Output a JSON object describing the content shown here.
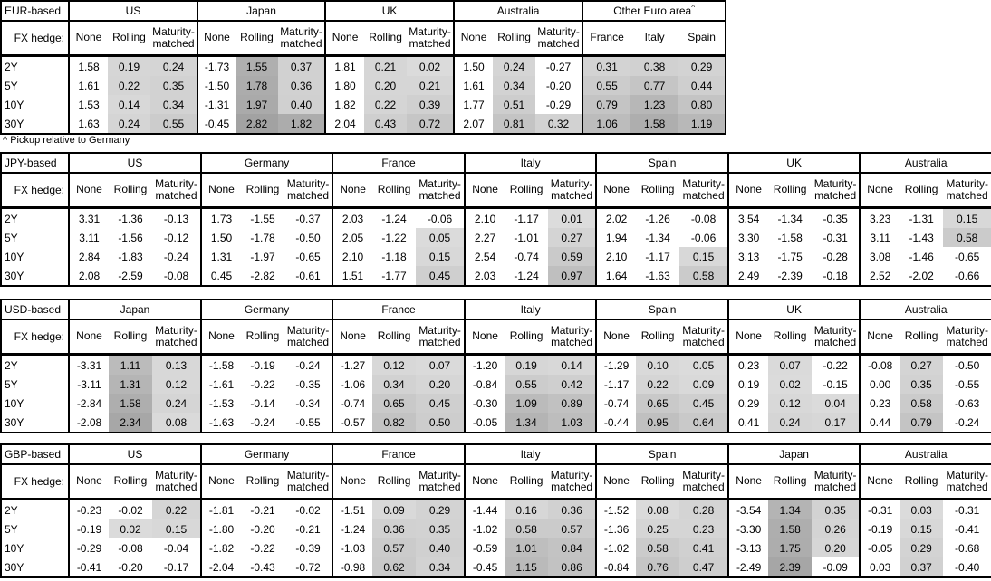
{
  "page": {
    "background": "#ffffff",
    "border_color": "#000000"
  },
  "heatmap": {
    "zero_or_negative": "#ffffff",
    "low": "#dcdcdc",
    "high": "#a2a2a2"
  },
  "tables": [
    {
      "base_label": "EUR-based",
      "fx_label": "FX hedge:",
      "row_labels": [
        "2Y",
        "5Y",
        "10Y",
        "30Y"
      ],
      "col_headers": [
        "None",
        "Rolling",
        "Maturity-matched"
      ],
      "footnote": "^ Pickup relative to Germany",
      "groups": [
        {
          "country": "US",
          "rows": [
            [
              "1.58",
              "0.19",
              "0.24"
            ],
            [
              "1.61",
              "0.22",
              "0.35"
            ],
            [
              "1.53",
              "0.14",
              "0.34"
            ],
            [
              "1.63",
              "0.24",
              "0.55"
            ]
          ]
        },
        {
          "country": "Japan",
          "rows": [
            [
              "-1.73",
              "1.55",
              "0.37"
            ],
            [
              "-1.50",
              "1.78",
              "0.36"
            ],
            [
              "-1.31",
              "1.97",
              "0.40"
            ],
            [
              "-0.45",
              "2.82",
              "1.82"
            ]
          ]
        },
        {
          "country": "UK",
          "rows": [
            [
              "1.81",
              "0.21",
              "0.02"
            ],
            [
              "1.80",
              "0.20",
              "0.21"
            ],
            [
              "1.82",
              "0.22",
              "0.39"
            ],
            [
              "2.04",
              "0.43",
              "0.72"
            ]
          ]
        },
        {
          "country": "Australia",
          "rows": [
            [
              "1.50",
              "0.24",
              "-0.27"
            ],
            [
              "1.61",
              "0.34",
              "-0.20"
            ],
            [
              "1.77",
              "0.51",
              "-0.29"
            ],
            [
              "2.07",
              "0.81",
              "0.32"
            ]
          ]
        },
        {
          "country": "Other Euro area",
          "sup": "^",
          "sub_headers": [
            "France",
            "Italy",
            "Spain"
          ],
          "rows": [
            [
              "0.31",
              "0.38",
              "0.29"
            ],
            [
              "0.55",
              "0.77",
              "0.44"
            ],
            [
              "0.79",
              "1.23",
              "0.80"
            ],
            [
              "1.06",
              "1.58",
              "1.19"
            ]
          ]
        }
      ]
    },
    {
      "base_label": "JPY-based",
      "fx_label": "FX hedge:",
      "row_labels": [
        "2Y",
        "5Y",
        "10Y",
        "30Y"
      ],
      "col_headers": [
        "None",
        "Rolling",
        "Maturity-matched"
      ],
      "groups": [
        {
          "country": "US",
          "rows": [
            [
              "3.31",
              "-1.36",
              "-0.13"
            ],
            [
              "3.11",
              "-1.56",
              "-0.12"
            ],
            [
              "2.84",
              "-1.83",
              "-0.24"
            ],
            [
              "2.08",
              "-2.59",
              "-0.08"
            ]
          ]
        },
        {
          "country": "Germany",
          "rows": [
            [
              "1.73",
              "-1.55",
              "-0.37"
            ],
            [
              "1.50",
              "-1.78",
              "-0.50"
            ],
            [
              "1.31",
              "-1.97",
              "-0.65"
            ],
            [
              "0.45",
              "-2.82",
              "-0.61"
            ]
          ]
        },
        {
          "country": "France",
          "rows": [
            [
              "2.03",
              "-1.24",
              "-0.06"
            ],
            [
              "2.05",
              "-1.22",
              "0.05"
            ],
            [
              "2.10",
              "-1.18",
              "0.15"
            ],
            [
              "1.51",
              "-1.77",
              "0.45"
            ]
          ]
        },
        {
          "country": "Italy",
          "rows": [
            [
              "2.10",
              "-1.17",
              "0.01"
            ],
            [
              "2.27",
              "-1.01",
              "0.27"
            ],
            [
              "2.54",
              "-0.74",
              "0.59"
            ],
            [
              "2.03",
              "-1.24",
              "0.97"
            ]
          ]
        },
        {
          "country": "Spain",
          "rows": [
            [
              "2.02",
              "-1.26",
              "-0.08"
            ],
            [
              "1.94",
              "-1.34",
              "-0.06"
            ],
            [
              "2.10",
              "-1.17",
              "0.15"
            ],
            [
              "1.64",
              "-1.63",
              "0.58"
            ]
          ]
        },
        {
          "country": "UK",
          "rows": [
            [
              "3.54",
              "-1.34",
              "-0.35"
            ],
            [
              "3.30",
              "-1.58",
              "-0.31"
            ],
            [
              "3.13",
              "-1.75",
              "-0.28"
            ],
            [
              "2.49",
              "-2.39",
              "-0.18"
            ]
          ]
        },
        {
          "country": "Australia",
          "rows": [
            [
              "3.23",
              "-1.31",
              "0.15"
            ],
            [
              "3.11",
              "-1.43",
              "0.58"
            ],
            [
              "3.08",
              "-1.46",
              "-0.65"
            ],
            [
              "2.52",
              "-2.02",
              "-0.66"
            ]
          ]
        }
      ]
    },
    {
      "base_label": "USD-based",
      "fx_label": "FX hedge:",
      "row_labels": [
        "2Y",
        "5Y",
        "10Y",
        "30Y"
      ],
      "col_headers": [
        "None",
        "Rolling",
        "Maturity-matched"
      ],
      "groups": [
        {
          "country": "Japan",
          "rows": [
            [
              "-3.31",
              "1.11",
              "0.13"
            ],
            [
              "-3.11",
              "1.31",
              "0.12"
            ],
            [
              "-2.84",
              "1.58",
              "0.24"
            ],
            [
              "-2.08",
              "2.34",
              "0.08"
            ]
          ]
        },
        {
          "country": "Germany",
          "rows": [
            [
              "-1.58",
              "-0.19",
              "-0.24"
            ],
            [
              "-1.61",
              "-0.22",
              "-0.35"
            ],
            [
              "-1.53",
              "-0.14",
              "-0.34"
            ],
            [
              "-1.63",
              "-0.24",
              "-0.55"
            ]
          ]
        },
        {
          "country": "France",
          "rows": [
            [
              "-1.27",
              "0.12",
              "0.07"
            ],
            [
              "-1.06",
              "0.34",
              "0.20"
            ],
            [
              "-0.74",
              "0.65",
              "0.45"
            ],
            [
              "-0.57",
              "0.82",
              "0.50"
            ]
          ]
        },
        {
          "country": "Italy",
          "rows": [
            [
              "-1.20",
              "0.19",
              "0.14"
            ],
            [
              "-0.84",
              "0.55",
              "0.42"
            ],
            [
              "-0.30",
              "1.09",
              "0.89"
            ],
            [
              "-0.05",
              "1.34",
              "1.03"
            ]
          ]
        },
        {
          "country": "Spain",
          "rows": [
            [
              "-1.29",
              "0.10",
              "0.05"
            ],
            [
              "-1.17",
              "0.22",
              "0.09"
            ],
            [
              "-0.74",
              "0.65",
              "0.45"
            ],
            [
              "-0.44",
              "0.95",
              "0.64"
            ]
          ]
        },
        {
          "country": "UK",
          "rows": [
            [
              "0.23",
              "0.07",
              "-0.22"
            ],
            [
              "0.19",
              "0.02",
              "-0.15"
            ],
            [
              "0.29",
              "0.12",
              "0.04"
            ],
            [
              "0.41",
              "0.24",
              "0.17"
            ]
          ]
        },
        {
          "country": "Australia",
          "rows": [
            [
              "-0.08",
              "0.27",
              "-0.50"
            ],
            [
              "0.00",
              "0.35",
              "-0.55"
            ],
            [
              "0.23",
              "0.58",
              "-0.63"
            ],
            [
              "0.44",
              "0.79",
              "-0.24"
            ]
          ]
        }
      ]
    },
    {
      "base_label": "GBP-based",
      "fx_label": "FX hedge:",
      "row_labels": [
        "2Y",
        "5Y",
        "10Y",
        "30Y"
      ],
      "col_headers": [
        "None",
        "Rolling",
        "Maturity-matched"
      ],
      "groups": [
        {
          "country": "US",
          "rows": [
            [
              "-0.23",
              "-0.02",
              "0.22"
            ],
            [
              "-0.19",
              "0.02",
              "0.15"
            ],
            [
              "-0.29",
              "-0.08",
              "-0.04"
            ],
            [
              "-0.41",
              "-0.20",
              "-0.17"
            ]
          ]
        },
        {
          "country": "Germany",
          "rows": [
            [
              "-1.81",
              "-0.21",
              "-0.02"
            ],
            [
              "-1.80",
              "-0.20",
              "-0.21"
            ],
            [
              "-1.82",
              "-0.22",
              "-0.39"
            ],
            [
              "-2.04",
              "-0.43",
              "-0.72"
            ]
          ]
        },
        {
          "country": "France",
          "rows": [
            [
              "-1.51",
              "0.09",
              "0.29"
            ],
            [
              "-1.24",
              "0.36",
              "0.35"
            ],
            [
              "-1.03",
              "0.57",
              "0.40"
            ],
            [
              "-0.98",
              "0.62",
              "0.34"
            ]
          ]
        },
        {
          "country": "Italy",
          "rows": [
            [
              "-1.44",
              "0.16",
              "0.36"
            ],
            [
              "-1.02",
              "0.58",
              "0.57"
            ],
            [
              "-0.59",
              "1.01",
              "0.84"
            ],
            [
              "-0.45",
              "1.15",
              "0.86"
            ]
          ]
        },
        {
          "country": "Spain",
          "rows": [
            [
              "-1.52",
              "0.08",
              "0.28"
            ],
            [
              "-1.36",
              "0.25",
              "0.23"
            ],
            [
              "-1.02",
              "0.58",
              "0.41"
            ],
            [
              "-0.84",
              "0.76",
              "0.47"
            ]
          ]
        },
        {
          "country": "Japan",
          "rows": [
            [
              "-3.54",
              "1.34",
              "0.35"
            ],
            [
              "-3.30",
              "1.58",
              "0.26"
            ],
            [
              "-3.13",
              "1.75",
              "0.20"
            ],
            [
              "-2.49",
              "2.39",
              "-0.09"
            ]
          ]
        },
        {
          "country": "Australia",
          "rows": [
            [
              "-0.31",
              "0.03",
              "-0.31"
            ],
            [
              "-0.19",
              "0.15",
              "-0.41"
            ],
            [
              "-0.05",
              "0.29",
              "-0.68"
            ],
            [
              "0.03",
              "0.37",
              "-0.40"
            ]
          ]
        }
      ]
    }
  ]
}
